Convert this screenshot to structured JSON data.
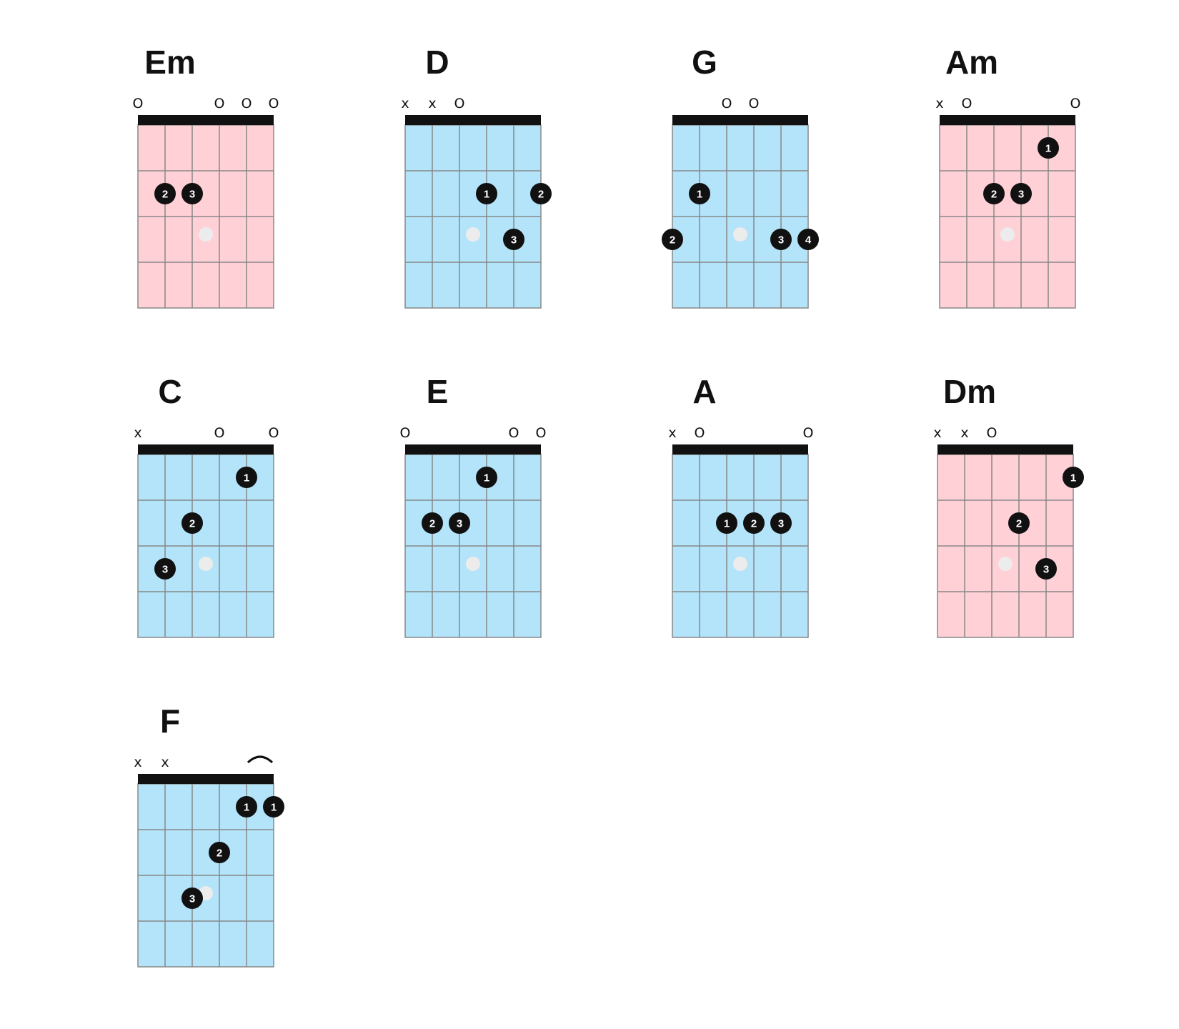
{
  "colors": {
    "major": "#b3e4fa",
    "minor": "#ffd0d6",
    "nut": "#111111",
    "fret_line": "#888888",
    "dot": "#111111",
    "center_mark": "#ececec"
  },
  "chords": [
    {
      "name": "Em",
      "fill": "#ffd0d6",
      "fingers": [
        {
          "string": 2,
          "fret": 2,
          "label": "2"
        },
        {
          "string": 3,
          "fret": 2,
          "label": "3"
        }
      ],
      "markers": [
        {
          "string": 1,
          "symbol": "O"
        },
        {
          "string": 4,
          "symbol": "O"
        },
        {
          "string": 5,
          "symbol": "O"
        },
        {
          "string": 6,
          "symbol": "O"
        }
      ]
    },
    {
      "name": "D",
      "fill": "#b3e4fa",
      "fingers": [
        {
          "string": 4,
          "fret": 2,
          "label": "1"
        },
        {
          "string": 6,
          "fret": 2,
          "label": "2"
        },
        {
          "string": 5,
          "fret": 3,
          "label": "3"
        }
      ],
      "markers": [
        {
          "string": 1,
          "symbol": "x"
        },
        {
          "string": 2,
          "symbol": "x"
        },
        {
          "string": 3,
          "symbol": "O"
        }
      ]
    },
    {
      "name": "G",
      "fill": "#b3e4fa",
      "fingers": [
        {
          "string": 2,
          "fret": 2,
          "label": "1"
        },
        {
          "string": 1,
          "fret": 3,
          "label": "2"
        },
        {
          "string": 5,
          "fret": 3,
          "label": "3"
        },
        {
          "string": 6,
          "fret": 3,
          "label": "4"
        }
      ],
      "markers": [
        {
          "string": 3,
          "symbol": "O"
        },
        {
          "string": 4,
          "symbol": "O"
        }
      ]
    },
    {
      "name": "Am",
      "fill": "#ffd0d6",
      "fingers": [
        {
          "string": 5,
          "fret": 1,
          "label": "1"
        },
        {
          "string": 3,
          "fret": 2,
          "label": "2"
        },
        {
          "string": 4,
          "fret": 2,
          "label": "3"
        }
      ],
      "markers": [
        {
          "string": 1,
          "symbol": "x"
        },
        {
          "string": 2,
          "symbol": "O"
        },
        {
          "string": 6,
          "symbol": "O"
        }
      ]
    },
    {
      "name": "C",
      "fill": "#b3e4fa",
      "fingers": [
        {
          "string": 5,
          "fret": 1,
          "label": "1"
        },
        {
          "string": 3,
          "fret": 2,
          "label": "2"
        },
        {
          "string": 2,
          "fret": 3,
          "label": "3"
        }
      ],
      "markers": [
        {
          "string": 1,
          "symbol": "x"
        },
        {
          "string": 4,
          "symbol": "O"
        },
        {
          "string": 6,
          "symbol": "O"
        }
      ]
    },
    {
      "name": "E",
      "fill": "#b3e4fa",
      "fingers": [
        {
          "string": 4,
          "fret": 1,
          "label": "1"
        },
        {
          "string": 2,
          "fret": 2,
          "label": "2"
        },
        {
          "string": 3,
          "fret": 2,
          "label": "3"
        }
      ],
      "markers": [
        {
          "string": 1,
          "symbol": "O"
        },
        {
          "string": 5,
          "symbol": "O"
        },
        {
          "string": 6,
          "symbol": "O"
        }
      ]
    },
    {
      "name": "A",
      "fill": "#b3e4fa",
      "fingers": [
        {
          "string": 3,
          "fret": 2,
          "label": "1"
        },
        {
          "string": 4,
          "fret": 2,
          "label": "2"
        },
        {
          "string": 5,
          "fret": 2,
          "label": "3"
        }
      ],
      "markers": [
        {
          "string": 1,
          "symbol": "x"
        },
        {
          "string": 2,
          "symbol": "O"
        },
        {
          "string": 6,
          "symbol": "O"
        }
      ]
    },
    {
      "name": "Dm",
      "fill": "#ffd0d6",
      "fingers": [
        {
          "string": 6,
          "fret": 1,
          "label": "1"
        },
        {
          "string": 4,
          "fret": 2,
          "label": "2"
        },
        {
          "string": 5,
          "fret": 3,
          "label": "3"
        }
      ],
      "markers": [
        {
          "string": 1,
          "symbol": "x"
        },
        {
          "string": 2,
          "symbol": "x"
        },
        {
          "string": 3,
          "symbol": "O"
        }
      ]
    },
    {
      "name": "F",
      "fill": "#b3e4fa",
      "fingers": [
        {
          "string": 5,
          "fret": 1,
          "label": "1"
        },
        {
          "string": 6,
          "fret": 1,
          "label": "1"
        },
        {
          "string": 4,
          "fret": 2,
          "label": "2"
        },
        {
          "string": 3,
          "fret": 3,
          "label": "3"
        }
      ],
      "markers": [
        {
          "string": 1,
          "symbol": "x"
        },
        {
          "string": 2,
          "symbol": "x"
        }
      ],
      "barre": {
        "from_string": 5,
        "to_string": 6,
        "fret": 1
      }
    }
  ]
}
